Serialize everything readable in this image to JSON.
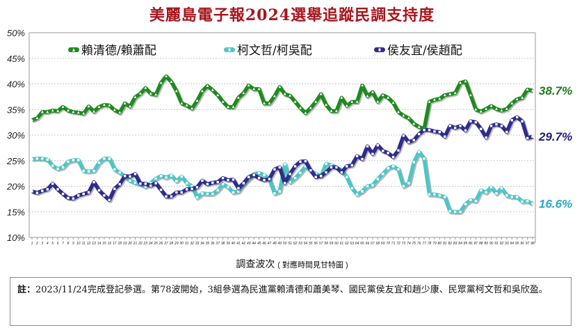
{
  "title": "美麗島電子報2024選舉追蹤民調支持度",
  "note": {
    "prefix": "註：",
    "text": "2023/11/24完成登記參選。第78波開始，3組參選為民進黨賴清德和蕭美琴、國民黨侯友宜和趙少康、民眾黨柯文哲和吳欣盈。"
  },
  "chart_data": {
    "type": "line",
    "title": "美麗島電子報2024選舉追蹤民調支持度",
    "xlabel": "調查波次",
    "xlabel_sub": "( 對應時間見甘特圖 )",
    "ylabel": "",
    "ylim": [
      10,
      50
    ],
    "yticks": [
      "10%",
      "15%",
      "20%",
      "25%",
      "30%",
      "35%",
      "40%",
      "45%",
      "50%"
    ],
    "ytick_values": [
      10,
      15,
      20,
      25,
      30,
      35,
      40,
      45,
      50
    ],
    "grid": true,
    "legend_placement": "top",
    "x": [
      1,
      2,
      3,
      4,
      5,
      6,
      7,
      8,
      9,
      10,
      11,
      12,
      13,
      14,
      15,
      16,
      17,
      18,
      19,
      20,
      21,
      22,
      23,
      24,
      25,
      26,
      27,
      28,
      29,
      30,
      31,
      32,
      33,
      34,
      35,
      36,
      37,
      38,
      39,
      40,
      41,
      42,
      43,
      44,
      45,
      46,
      47,
      48,
      49,
      50,
      51,
      52,
      53,
      54,
      55,
      56,
      57,
      58,
      59,
      60,
      61,
      62,
      63,
      64,
      65,
      66,
      67,
      68,
      69,
      70,
      71,
      72,
      73,
      74,
      75,
      76,
      77,
      78,
      79,
      80,
      81,
      82,
      83,
      84,
      85,
      86,
      87,
      88,
      89,
      90,
      91,
      92,
      93,
      94,
      95,
      96,
      97,
      98
    ],
    "series": [
      {
        "name": "賴清德/賴蕭配",
        "color": "#1f8a1f",
        "marker": "triangle",
        "end_label": "38.7%",
        "values": [
          32.9,
          33.3,
          34.5,
          34.5,
          34.8,
          34.7,
          35.5,
          34.8,
          34.5,
          34.4,
          34.2,
          35.6,
          34.6,
          35.5,
          35.9,
          35.8,
          34.9,
          34.4,
          36.2,
          35.6,
          37.4,
          38.1,
          39.2,
          38.1,
          37.9,
          40.2,
          41.5,
          40.4,
          38.6,
          36.2,
          35.8,
          35.2,
          36.7,
          38.6,
          39.6,
          38.8,
          37.8,
          36.5,
          35.5,
          35.5,
          37.3,
          38.2,
          39.7,
          39.0,
          39.0,
          36.2,
          36.2,
          37.6,
          39.4,
          38.0,
          37.7,
          36.5,
          35.3,
          34.3,
          35.3,
          36.5,
          38.0,
          35.9,
          34.7,
          34.7,
          37.3,
          35.7,
          36.5,
          36.5,
          39.7,
          37.6,
          38.4,
          36.5,
          37.8,
          37.3,
          36.3,
          34.5,
          33.8,
          33.3,
          32.2,
          31.6,
          31.2,
          36.5,
          36.9,
          37.1,
          37.8,
          38.0,
          38.2,
          40.2,
          40.5,
          37.8,
          35.0,
          34.6,
          35.1,
          35.7,
          35.1,
          34.8,
          35.1,
          36.2,
          37.0,
          37.3,
          38.9,
          38.7
        ]
      },
      {
        "name": "柯文哲/柯吳配",
        "color": "#4cc6c8",
        "marker": "square",
        "end_label": "16.6%",
        "values": [
          25.3,
          25.4,
          25.4,
          25.2,
          24.0,
          23.4,
          23.7,
          24.8,
          25.1,
          25.1,
          23.0,
          22.9,
          23.0,
          24.6,
          25.4,
          25.4,
          23.3,
          22.7,
          21.9,
          21.1,
          20.7,
          20.4,
          19.9,
          20.6,
          21.5,
          22.0,
          21.7,
          22.1,
          21.0,
          21.9,
          20.6,
          20.0,
          17.8,
          18.6,
          18.5,
          18.5,
          19.2,
          20.4,
          19.8,
          18.8,
          19.0,
          20.4,
          21.4,
          22.4,
          22.6,
          22.2,
          21.4,
          18.6,
          19.0,
          24.3,
          20.8,
          21.6,
          22.6,
          23.9,
          23.1,
          22.4,
          22.0,
          24.4,
          24.1,
          23.7,
          23.1,
          21.8,
          19.6,
          18.4,
          19.0,
          20.0,
          20.2,
          21.4,
          22.4,
          23.5,
          23.9,
          23.3,
          20.0,
          20.6,
          24.7,
          26.7,
          25.4,
          18.4,
          18.4,
          18.2,
          17.9,
          15.1,
          15.0,
          15.0,
          16.5,
          17.3,
          17.1,
          19.2,
          18.8,
          19.8,
          18.6,
          19.6,
          18.2,
          17.9,
          17.9,
          17.0,
          17.1,
          16.6
        ]
      },
      {
        "name": "侯友宜/侯趙配",
        "color": "#2e2c8c",
        "marker": "square",
        "end_label": "29.7%",
        "values": [
          19.0,
          18.7,
          19.1,
          19.4,
          20.5,
          19.4,
          18.5,
          17.7,
          17.6,
          18.2,
          18.5,
          18.8,
          20.8,
          19.2,
          18.2,
          17.3,
          19.5,
          20.4,
          22.0,
          21.9,
          22.4,
          20.5,
          20.5,
          20.1,
          20.6,
          19.3,
          18.0,
          18.0,
          18.8,
          18.8,
          19.4,
          19.5,
          19.8,
          21.1,
          20.4,
          20.7,
          20.8,
          21.6,
          21.2,
          21.3,
          19.6,
          20.6,
          21.8,
          22.2,
          21.6,
          21.2,
          21.4,
          23.3,
          23.7,
          20.6,
          22.4,
          23.9,
          24.8,
          24.9,
          23.1,
          21.8,
          22.0,
          22.7,
          23.7,
          23.7,
          22.7,
          23.9,
          24.1,
          25.9,
          25.3,
          27.8,
          26.3,
          28.0,
          26.9,
          26.5,
          25.7,
          27.0,
          29.9,
          28.6,
          29.0,
          30.2,
          31.0,
          31.0,
          30.7,
          30.6,
          29.7,
          31.8,
          31.4,
          31.8,
          30.9,
          32.7,
          32.5,
          31.2,
          29.5,
          31.8,
          32.1,
          31.8,
          30.6,
          32.9,
          33.5,
          32.7,
          29.4,
          29.7
        ]
      }
    ]
  }
}
